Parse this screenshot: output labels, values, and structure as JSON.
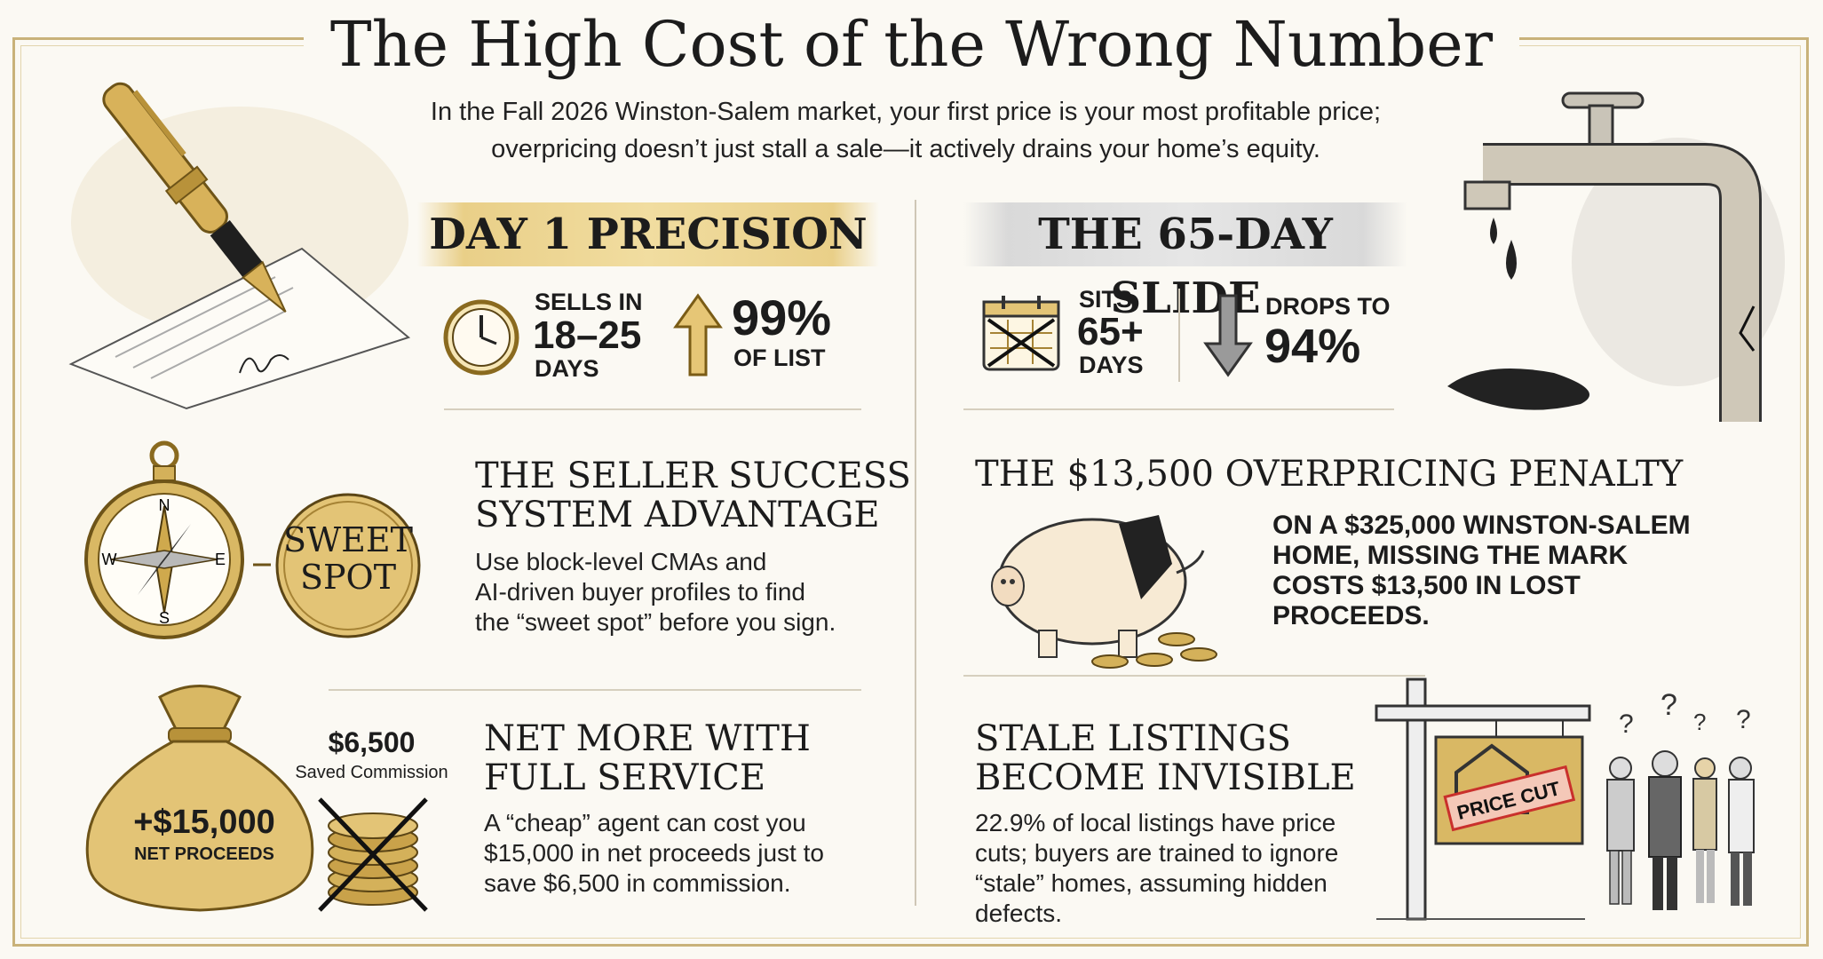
{
  "title": "The High Cost of the Wrong Number",
  "subtitle_line1": "In the Fall 2026 Winston-Salem market, your first price is your most profitable price;",
  "subtitle_line2": "overpricing doesn’t just stall a sale—it actively drains your home’s equity.",
  "left": {
    "banner": "DAY 1 PRECISION",
    "sells_label": "SELLS IN",
    "sells_range": "18–25",
    "sells_unit": "DAYS",
    "list_pct": "99%",
    "list_label": "OF LIST",
    "success_head_line1": "THE SELLER SUCCESS",
    "success_head_line2": "SYSTEM ADVANTAGE",
    "success_body_line1": "Use block-level CMAs and",
    "success_body_line2": "AI-driven buyer profiles to find",
    "success_body_line3": "the “sweet spot” before you sign.",
    "sweet_line1": "SWEET",
    "sweet_line2": "SPOT",
    "compass_n": "N",
    "compass_s": "S",
    "compass_e": "E",
    "compass_w": "W",
    "bag_amount": "+$15,000",
    "bag_label": "NET PROCEEDS",
    "saved_amount": "$6,500",
    "saved_label": "Saved Commission",
    "net_head_line1": "NET MORE WITH",
    "net_head_line2": "FULL SERVICE",
    "net_body_line1": "A “cheap” agent can cost you",
    "net_body_line2": "$15,000 in net proceeds just to",
    "net_body_line3": "save $6,500 in commission."
  },
  "right": {
    "banner": "THE 65-DAY SLIDE",
    "sits_label": "SITS",
    "sits_value": "65+",
    "sits_unit": "DAYS",
    "drops_label": "DROPS TO",
    "drops_value": "94%",
    "penalty_head": "THE $13,500 OVERPRICING PENALTY",
    "penalty_line1": "ON A $325,000 WINSTON-SALEM",
    "penalty_line2": "HOME, MISSING THE MARK",
    "penalty_line3": "COSTS $13,500 IN LOST",
    "penalty_line4": "PROCEEDS.",
    "stale_head_line1": "STALE LISTINGS",
    "stale_head_line2": "BECOME INVISIBLE",
    "stale_body_line1": "22.9% of local listings have price",
    "stale_body_line2": "cuts; buyers are trained to ignore",
    "stale_body_line3": "“stale” homes, assuming hidden",
    "stale_body_line4": "defects.",
    "price_cut": "PRICE CUT"
  },
  "icons": {
    "pen": "fountain-pen-icon",
    "clock": "clock-icon",
    "arrow_up": "arrow-up-icon",
    "compass": "compass-icon",
    "money_bag": "money-bag-icon",
    "coins": "coin-stack-crossed-icon",
    "faucet": "leaking-faucet-icon",
    "calendar": "calendar-crossed-icon",
    "arrow_down": "arrow-down-icon",
    "piggy": "broken-piggy-bank-icon",
    "sign": "price-cut-sign-icon",
    "buyers": "confused-buyers-icon"
  },
  "colors": {
    "gold": "#d4b15a",
    "gold_dark": "#8a6a1f",
    "ink": "#1c1c1c",
    "background": "#fbf9f3",
    "red": "#c9302c"
  }
}
